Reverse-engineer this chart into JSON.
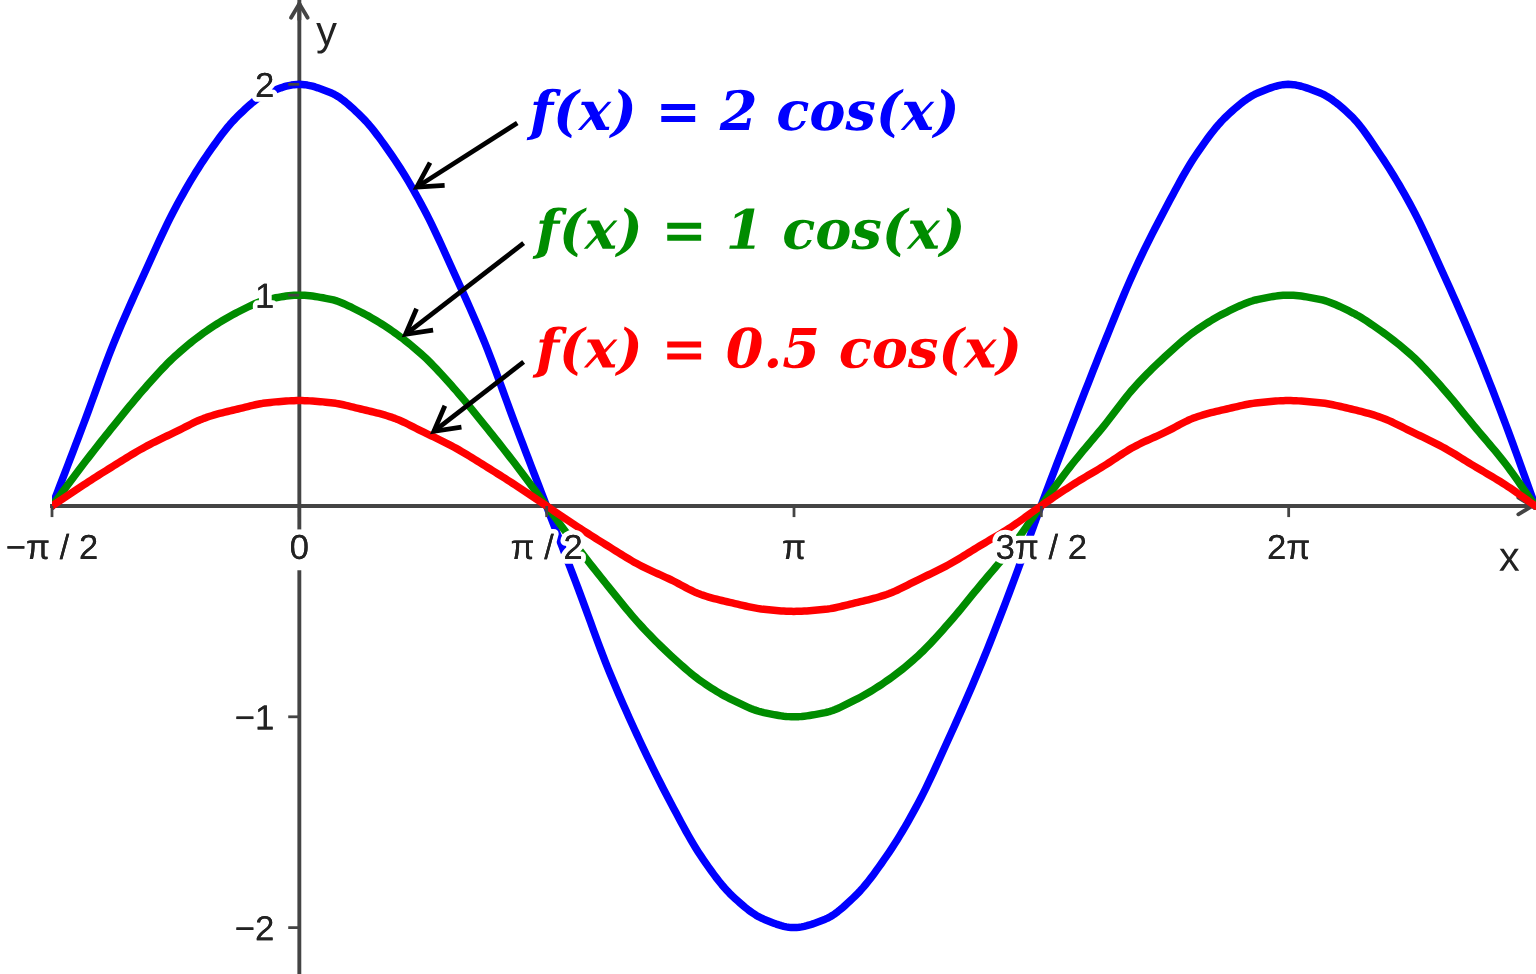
{
  "chart_data": {
    "type": "line",
    "xlabel": "x",
    "ylabel": "y",
    "x": [
      -1.57,
      -1.37,
      -1.18,
      -0.98,
      -0.79,
      -0.59,
      -0.39,
      -0.2,
      0,
      0.2,
      0.39,
      0.59,
      0.79,
      0.98,
      1.18,
      1.37,
      1.57,
      1.77,
      1.96,
      2.16,
      2.36,
      2.55,
      2.75,
      2.95,
      3.14,
      3.34,
      3.53,
      3.73,
      3.93,
      4.12,
      4.32,
      4.52,
      4.71,
      4.91,
      5.11,
      5.3,
      5.5,
      5.69,
      5.89,
      6.09,
      6.28,
      6.48,
      6.68,
      6.87,
      7.07,
      7.26,
      7.46,
      7.66,
      7.85
    ],
    "series": [
      {
        "color": "#0000ff",
        "values": [
          0,
          0.39,
          0.77,
          1.11,
          1.41,
          1.66,
          1.85,
          1.96,
          2,
          1.96,
          1.85,
          1.66,
          1.41,
          1.11,
          0.77,
          0.39,
          0,
          -0.39,
          -0.77,
          -1.11,
          -1.41,
          -1.66,
          -1.85,
          -1.96,
          -2,
          -1.96,
          -1.85,
          -1.66,
          -1.41,
          -1.11,
          -0.77,
          -0.39,
          0,
          0.39,
          0.77,
          1.11,
          1.41,
          1.66,
          1.85,
          1.96,
          2,
          1.96,
          1.85,
          1.66,
          1.41,
          1.11,
          0.77,
          0.39,
          0
        ]
      },
      {
        "color": "#008c00",
        "values": [
          0,
          0.2,
          0.38,
          0.56,
          0.71,
          0.83,
          0.92,
          0.98,
          1,
          0.98,
          0.92,
          0.83,
          0.71,
          0.56,
          0.38,
          0.2,
          0,
          -0.2,
          -0.38,
          -0.56,
          -0.71,
          -0.83,
          -0.92,
          -0.98,
          -1,
          -0.98,
          -0.92,
          -0.83,
          -0.71,
          -0.56,
          -0.38,
          -0.2,
          0,
          0.2,
          0.38,
          0.56,
          0.71,
          0.83,
          0.92,
          0.98,
          1,
          0.98,
          0.92,
          0.83,
          0.71,
          0.56,
          0.38,
          0.2,
          0
        ]
      },
      {
        "color": "#ff0000",
        "values": [
          0,
          0.1,
          0.19,
          0.28,
          0.35,
          0.42,
          0.46,
          0.49,
          0.5,
          0.49,
          0.46,
          0.42,
          0.35,
          0.28,
          0.19,
          0.1,
          0,
          -0.1,
          -0.19,
          -0.28,
          -0.35,
          -0.42,
          -0.46,
          -0.49,
          -0.5,
          -0.49,
          -0.46,
          -0.42,
          -0.35,
          -0.28,
          -0.19,
          -0.1,
          0,
          0.1,
          0.19,
          0.28,
          0.35,
          0.42,
          0.46,
          0.49,
          0.5,
          0.49,
          0.46,
          0.42,
          0.35,
          0.28,
          0.19,
          0.1,
          0
        ]
      }
    ],
    "xlim": [
      -1.5708,
      7.854
    ],
    "ylim": [
      -2.22,
      2.4
    ],
    "xticks": [
      {
        "value": -1.5708,
        "label": "−π / 2"
      },
      {
        "value": 0,
        "label": "0"
      },
      {
        "value": 1.5708,
        "label": "π / 2"
      },
      {
        "value": 3.1416,
        "label": "π"
      },
      {
        "value": 4.7124,
        "label": "3π / 2"
      },
      {
        "value": 6.2832,
        "label": "2π"
      }
    ],
    "yticks": [
      {
        "value": -2,
        "label": "−2"
      },
      {
        "value": -1,
        "label": "−1"
      },
      1,
      2
    ],
    "annotations": [
      {
        "text": "f(x) = 2 cos(x)",
        "x": 0.72,
        "y": 1.5
      },
      {
        "text": "f(x) = 1 cos(x)",
        "x": 0.65,
        "y": 0.8
      },
      {
        "text": "f(x) = 0.5 cos(x)",
        "x": 0.83,
        "y": 0.34
      }
    ],
    "line_style": "solid"
  }
}
